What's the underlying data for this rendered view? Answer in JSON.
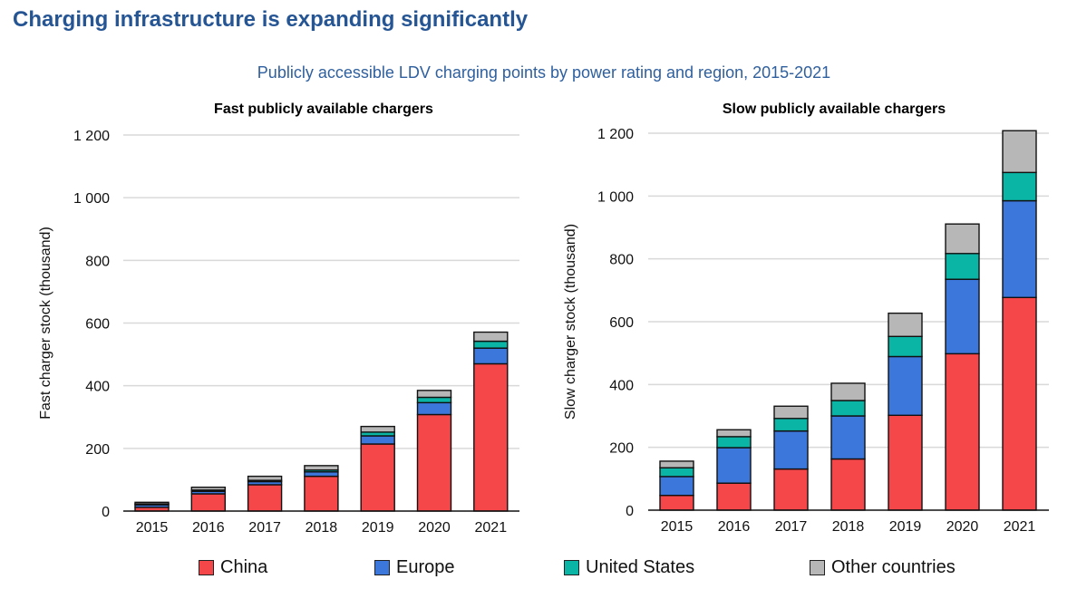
{
  "header": {
    "title": "Charging infrastructure is expanding significantly",
    "subtitle": "Publicly accessible LDV charging points by power rating and region, 2015-2021"
  },
  "legend": [
    {
      "name": "China",
      "color": "#f5474a"
    },
    {
      "name": "Europe",
      "color": "#3c78dc"
    },
    {
      "name": "United States",
      "color": "#0ab5a5"
    },
    {
      "name": "Other countries",
      "color": "#b7b7b7"
    }
  ],
  "chart_data": [
    {
      "type": "bar",
      "stacked": true,
      "title": "Fast  publicly available chargers",
      "xlabel": "",
      "ylabel": "Fast charger stock (thousand)",
      "ylim": [
        0,
        1200
      ],
      "yticks": [
        0,
        200,
        400,
        600,
        800,
        1000,
        1200
      ],
      "ytick_labels": [
        "0",
        "200",
        "400",
        "600",
        "800",
        "1 000",
        "1 200"
      ],
      "grid": true,
      "legend_position": "bottom",
      "categories": [
        "2015",
        "2016",
        "2017",
        "2018",
        "2019",
        "2020",
        "2021"
      ],
      "series": [
        {
          "name": "China",
          "color": "#f5474a",
          "values": [
            12,
            55,
            84,
            111,
            214,
            308,
            470
          ]
        },
        {
          "name": "Europe",
          "color": "#3c78dc",
          "values": [
            8,
            8,
            10,
            14,
            26,
            38,
            50
          ]
        },
        {
          "name": "United States",
          "color": "#0ab5a5",
          "values": [
            3,
            4,
            4,
            6,
            12,
            17,
            22
          ]
        },
        {
          "name": "Other countries",
          "color": "#b7b7b7",
          "values": [
            5,
            9,
            13,
            14,
            18,
            22,
            29
          ]
        }
      ]
    },
    {
      "type": "bar",
      "stacked": true,
      "title": "Slow publicly available chargers",
      "xlabel": "",
      "ylabel": "Slow charger stock (thousand)",
      "ylim": [
        0,
        1200
      ],
      "yticks": [
        0,
        200,
        400,
        600,
        800,
        1000,
        1200
      ],
      "ytick_labels": [
        "0",
        "200",
        "400",
        "600",
        "800",
        "1 000",
        "1 200"
      ],
      "grid": true,
      "legend_position": "bottom",
      "categories": [
        "2015",
        "2016",
        "2017",
        "2018",
        "2019",
        "2020",
        "2021"
      ],
      "series": [
        {
          "name": "China",
          "color": "#f5474a",
          "values": [
            47,
            86,
            131,
            163,
            302,
            498,
            677
          ]
        },
        {
          "name": "Europe",
          "color": "#3c78dc",
          "values": [
            60,
            113,
            121,
            137,
            187,
            237,
            308
          ]
        },
        {
          "name": "United States",
          "color": "#0ab5a5",
          "values": [
            28,
            35,
            40,
            49,
            64,
            82,
            90
          ]
        },
        {
          "name": "Other countries",
          "color": "#b7b7b7",
          "values": [
            21,
            22,
            39,
            55,
            74,
            94,
            133
          ]
        }
      ]
    }
  ]
}
